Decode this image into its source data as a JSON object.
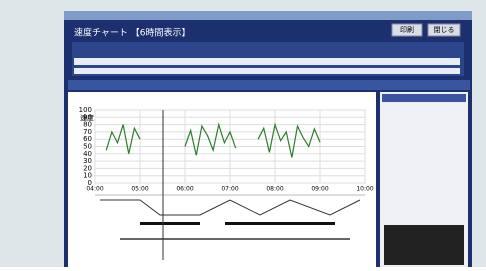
{
  "window": {
    "title": "速度チャート 【6時間表示】",
    "buttons": [
      "印刷",
      "閉じる"
    ]
  },
  "chart_data": {
    "type": "line",
    "y_label": "速度",
    "x": [
      0,
      0.125,
      0.25,
      0.375,
      0.5,
      0.625,
      0.75,
      0.875,
      1,
      1.125,
      1.25,
      1.375,
      1.5,
      1.625,
      1.75,
      1.875,
      2,
      2.125,
      2.25,
      2.375,
      2.5,
      2.625,
      2.75,
      2.875,
      3,
      3.125,
      3.25,
      3.375,
      3.5,
      3.625,
      3.75,
      3.875,
      4,
      4.125,
      4.25,
      4.375,
      4.5,
      4.625,
      4.75,
      4.875,
      5,
      5.125,
      5.25,
      5.375,
      5.5,
      5.625,
      5.75,
      5.875,
      6
    ],
    "series": [
      {
        "color": "#2e7d2e",
        "values": [
          null,
          null,
          45,
          70,
          55,
          80,
          40,
          75,
          60,
          null,
          null,
          null,
          null,
          null,
          null,
          null,
          50,
          72,
          38,
          78,
          65,
          45,
          80,
          55,
          70,
          48,
          null,
          null,
          null,
          60,
          75,
          42,
          80,
          58,
          70,
          35,
          78,
          62,
          50,
          74,
          56,
          null,
          null,
          null,
          null,
          null,
          null,
          null,
          null
        ]
      }
    ],
    "xlim": [
      0,
      6
    ],
    "xticks": [
      {
        "value": 0,
        "label": "04:00"
      },
      {
        "value": 1,
        "label": "05:00"
      },
      {
        "value": 2,
        "label": "06:00"
      },
      {
        "value": 3,
        "label": "07:00"
      },
      {
        "value": 4,
        "label": "08:00"
      },
      {
        "value": 5,
        "label": "09:00"
      },
      {
        "value": 6,
        "label": "10:00"
      }
    ],
    "ylim": [
      0,
      100
    ],
    "yticks": [
      0,
      10,
      20,
      30,
      40,
      50,
      60,
      70,
      80,
      90,
      100
    ],
    "grid": true
  }
}
